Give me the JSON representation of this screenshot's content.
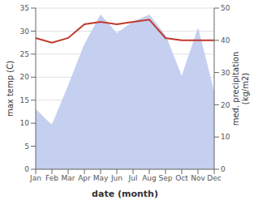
{
  "chart_data": {
    "type": "line",
    "categories": [
      "Jan",
      "Feb",
      "Mar",
      "Apr",
      "May",
      "Jun",
      "Jul",
      "Aug",
      "Sep",
      "Oct",
      "Nov",
      "Dec"
    ],
    "series": [
      {
        "type": "area",
        "color": "#c5cff0",
        "values": [
          13.0,
          9.5,
          18.0,
          27.0,
          33.5,
          29.5,
          32.0,
          33.5,
          29.0,
          20.0,
          30.5,
          16.5
        ]
      },
      {
        "type": "line",
        "color": "#c0392b",
        "values": [
          28.5,
          27.5,
          28.5,
          31.5,
          32.0,
          31.5,
          32.0,
          32.5,
          28.5,
          28.0,
          28.0,
          28.0
        ]
      }
    ],
    "xlabel": "date (month)",
    "ylabel": "max temp (C)",
    "y2label": "med. precipitation\n(kg/m2)",
    "ylim": [
      0,
      35
    ],
    "yticks": [
      0,
      5,
      10,
      15,
      20,
      25,
      30,
      35
    ],
    "y2lim": [
      0,
      50
    ],
    "y2ticks": [
      0,
      10,
      20,
      30,
      40,
      50
    ],
    "grid": true
  }
}
